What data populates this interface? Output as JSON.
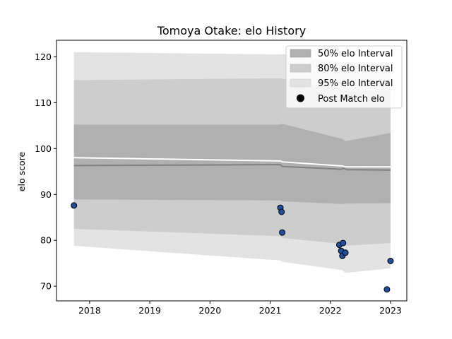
{
  "chart_data": {
    "type": "scatter",
    "title": "Tomoya Otake: elo History",
    "xlabel": "",
    "ylabel": "elo score",
    "xlim": [
      2017.45,
      2023.27
    ],
    "ylim": [
      66.8,
      123.6
    ],
    "x_ticks": [
      2018,
      2019,
      2020,
      2021,
      2022,
      2023
    ],
    "y_ticks": [
      70,
      80,
      90,
      100,
      110,
      120
    ],
    "grid": false,
    "legend_position": "top-right",
    "legend": [
      {
        "label": "50% elo Interval",
        "kind": "band",
        "color": "#b0b0b0"
      },
      {
        "label": "80% elo Interval",
        "kind": "band",
        "color": "#cdcdcd"
      },
      {
        "label": "95% elo Interval",
        "kind": "band",
        "color": "#e3e3e3"
      },
      {
        "label": "Post Match elo",
        "kind": "marker",
        "color": "#000000"
      }
    ],
    "bands": [
      {
        "name": "95% elo Interval",
        "color": "#e3e3e3",
        "x": [
          2017.74,
          2021.17,
          2021.2,
          2022.2,
          2022.25,
          2023.0
        ],
        "upper": [
          121.0,
          120.5,
          120.6,
          118.8,
          118.6,
          118.6
        ],
        "lower": [
          78.8,
          75.6,
          75.3,
          73.5,
          72.9,
          73.9
        ]
      },
      {
        "name": "80% elo Interval",
        "color": "#cdcdcd",
        "x": [
          2017.74,
          2021.17,
          2021.2,
          2022.2,
          2022.25,
          2023.0
        ],
        "upper": [
          114.9,
          115.3,
          115.2,
          112.9,
          112.5,
          112.6
        ],
        "lower": [
          82.5,
          80.9,
          80.5,
          79.2,
          78.8,
          79.4
        ]
      },
      {
        "name": "50% elo Interval",
        "color": "#b0b0b0",
        "x": [
          2017.74,
          2021.17,
          2021.2,
          2022.2,
          2022.25,
          2023.0
        ],
        "upper": [
          105.2,
          105.2,
          105.4,
          102.1,
          101.6,
          103.4
        ],
        "lower": [
          88.9,
          88.7,
          88.5,
          87.9,
          88.0,
          88.1
        ]
      }
    ],
    "lines": [
      {
        "name": "mean",
        "color": "#ffffff",
        "x": [
          2017.74,
          2021.17,
          2021.2,
          2022.2,
          2022.25,
          2023.0
        ],
        "y": [
          98.0,
          97.3,
          97.1,
          96.2,
          96.0,
          96.0
        ]
      },
      {
        "name": "median",
        "color": "#808080",
        "x": [
          2017.74,
          2021.17,
          2021.2,
          2022.18,
          2022.22,
          2022.28,
          2023.0
        ],
        "y": [
          96.3,
          96.5,
          96.1,
          95.5,
          95.7,
          95.4,
          95.3
        ]
      }
    ],
    "points": {
      "name": "Post Match elo",
      "color": "#1f4e9e",
      "edge_color": "#000000",
      "x": [
        2017.74,
        2021.17,
        2021.19,
        2021.2,
        2022.15,
        2022.18,
        2022.2,
        2022.21,
        2022.25,
        2022.94,
        2023.0
      ],
      "y": [
        87.6,
        87.1,
        86.2,
        81.7,
        79.0,
        77.7,
        76.6,
        79.4,
        77.3,
        69.3,
        75.5
      ]
    }
  }
}
